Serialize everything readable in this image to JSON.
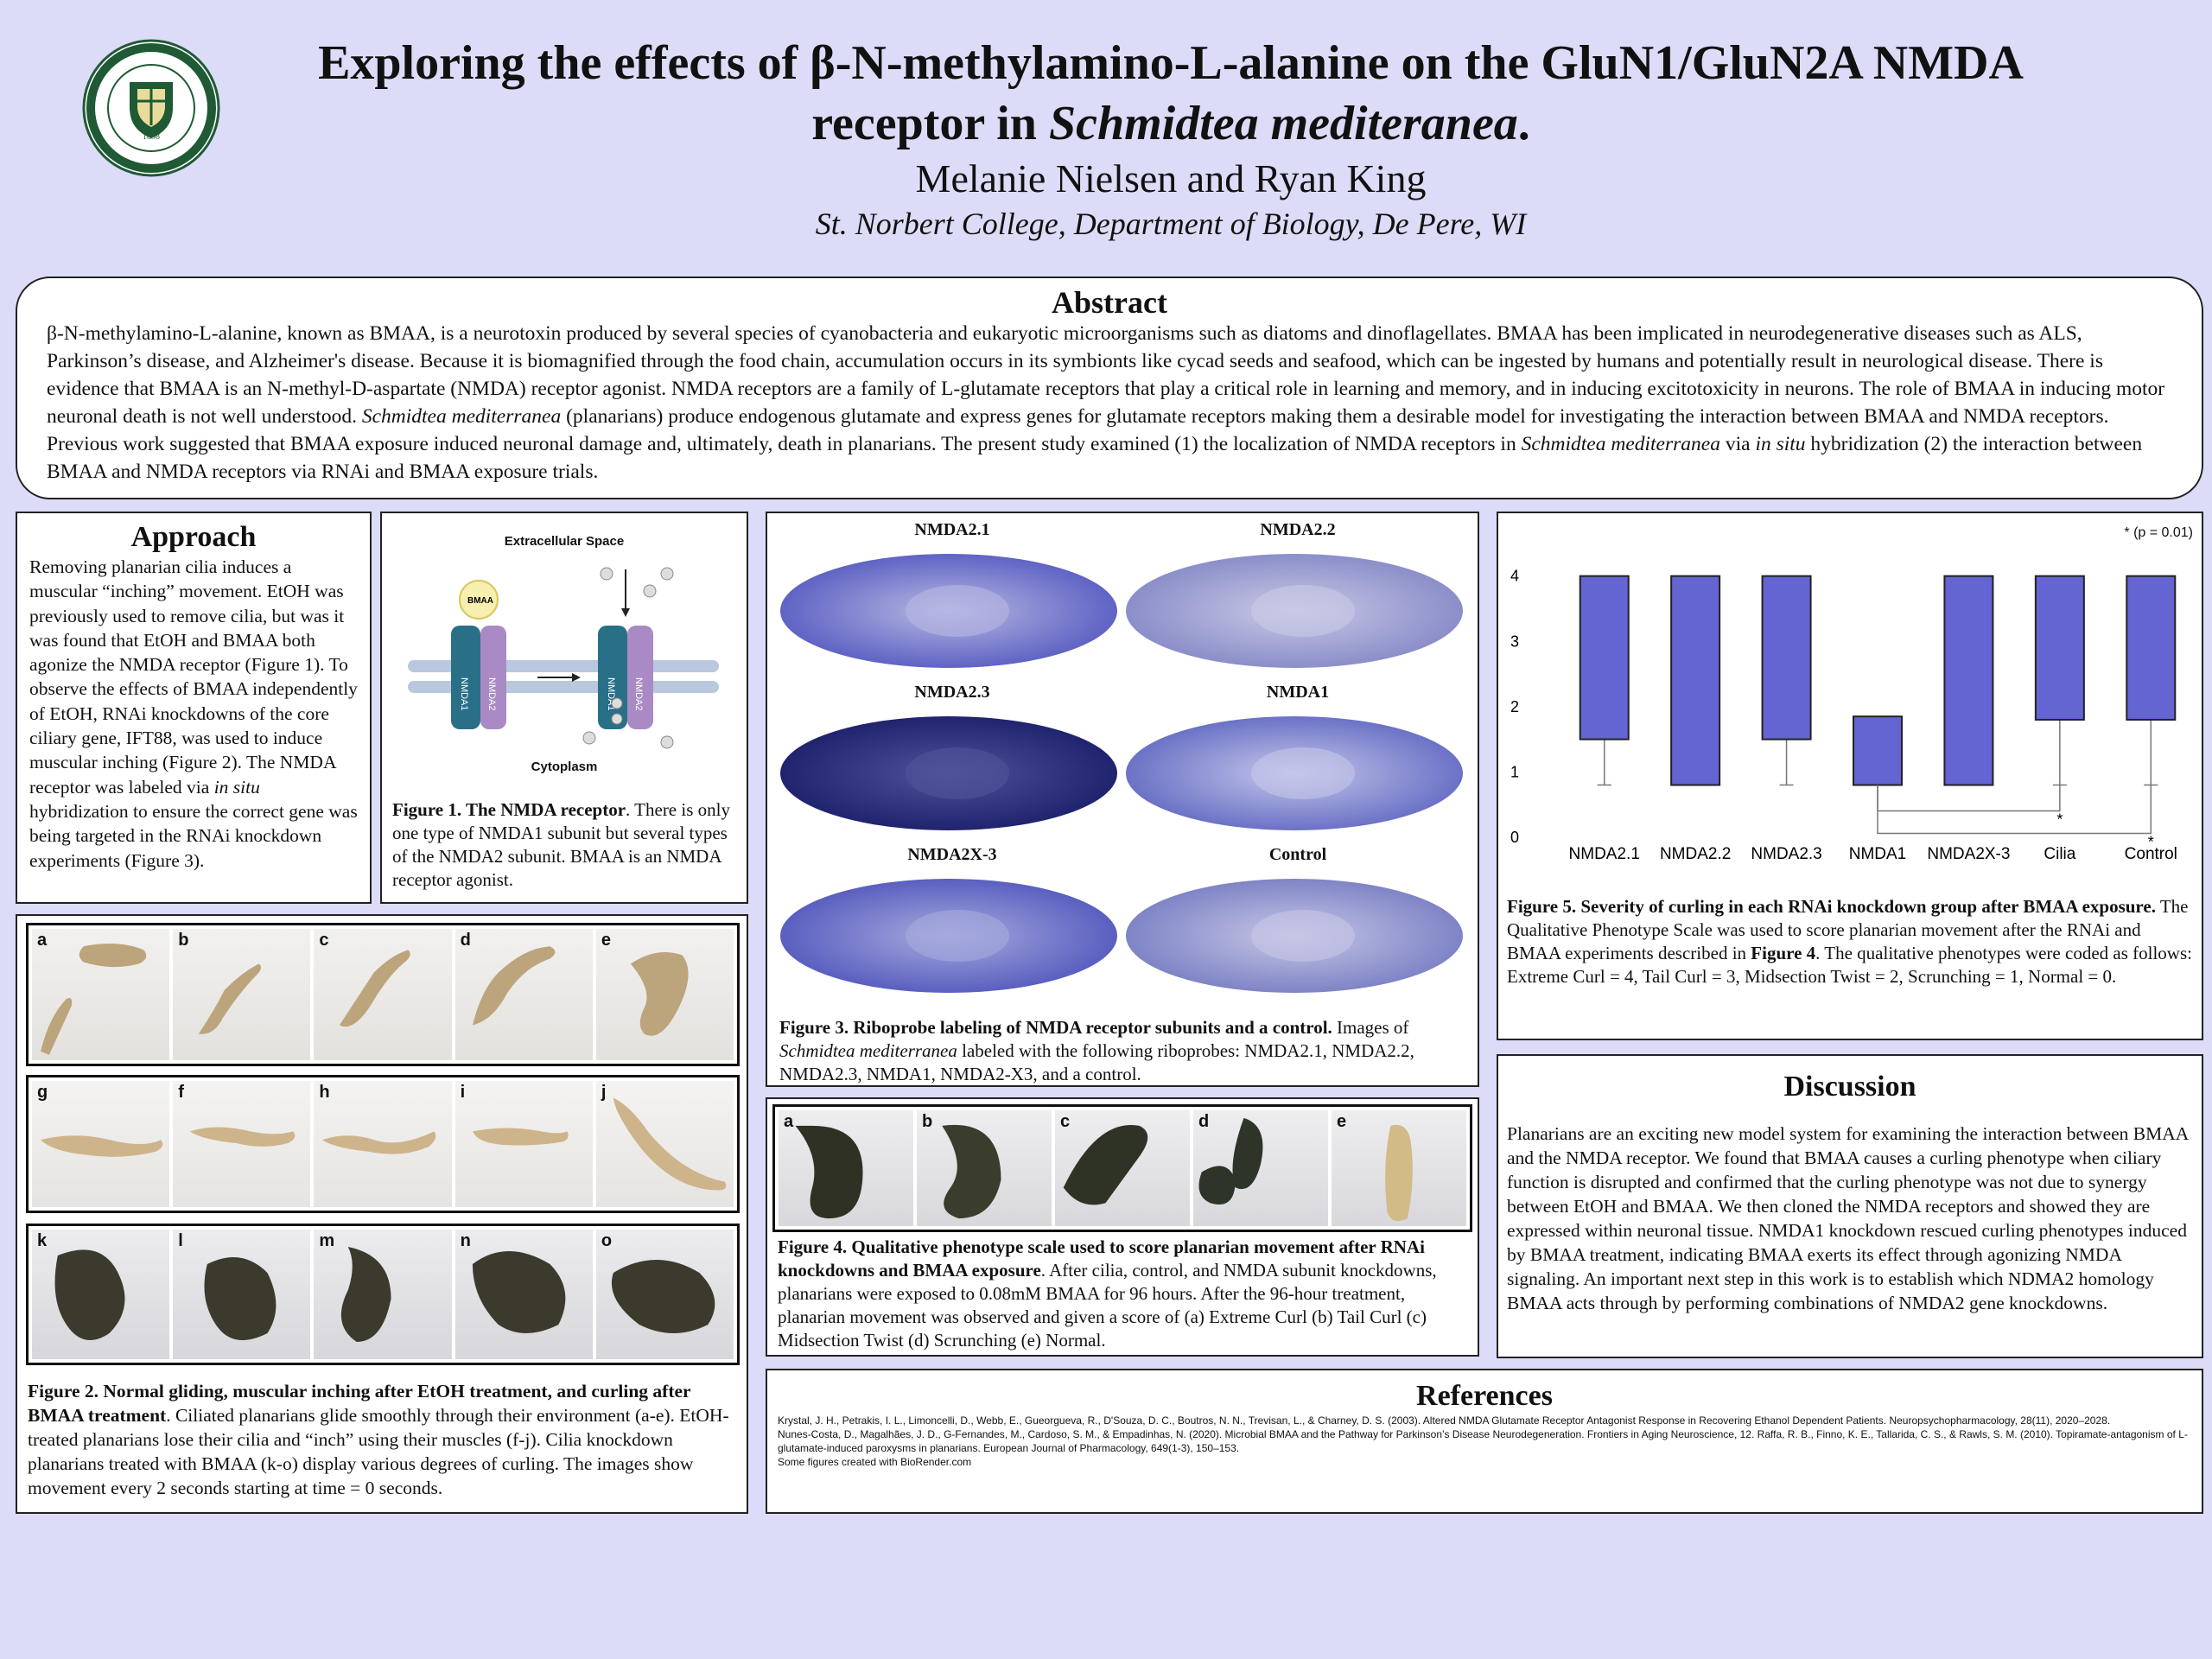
{
  "header": {
    "logo": {
      "top": "ST. NORBERT COLLEGE",
      "year": "1898",
      "motto": "Docere Verbo et Exemplo"
    },
    "title_line1": "Exploring the effects of β-N-methylamino-L-alanine on the GluN1/GluN2A NMDA",
    "title_line2_a": "receptor in ",
    "title_line2_italic": "Schmidtea mediteranea",
    "title_line2_b": ".",
    "authors": "Melanie Nielsen and Ryan King",
    "affiliation": "St. Norbert College, Department of Biology, De Pere, WI"
  },
  "abstract": {
    "heading": "Abstract",
    "text1": "β-N-methylamino-L-alanine, known as BMAA, is a neurotoxin produced by several species of cyanobacteria and eukaryotic microorganisms such as diatoms and dinoflagellates. BMAA has been implicated in neurodegenerative diseases such as ALS, Parkinson’s disease, and Alzheimer's disease. Because it is biomagnified through the food chain, accumulation occurs in its symbionts like cycad seeds and seafood, which can be ingested by humans and potentially result in neurological disease. There is evidence that BMAA is an N-methyl-D-aspartate (NMDA) receptor agonist. NMDA receptors are a family of L-glutamate receptors that play a critical role in learning and memory, and in inducing excitotoxicity in neurons. The role of BMAA in inducing motor neuronal death is not well understood. ",
    "italic1": "Schmidtea mediterranea",
    "text2": " (planarians) produce endogenous glutamate and express genes for glutamate receptors making them a desirable model for investigating the interaction between BMAA and NMDA receptors. Previous work suggested that BMAA exposure induced neuronal damage and, ultimately, death in planarians. The present study examined (1) the localization of NMDA receptors in ",
    "italic2": "Schmidtea mediterranea",
    "text3": " via ",
    "italic3": "in situ",
    "text4": " hybridization (2) the interaction between BMAA and NMDA receptors via RNAi and BMAA exposure trials."
  },
  "approach": {
    "heading": "Approach",
    "text1": "Removing planarian cilia induces a muscular “inching” movement. EtOH was previously used to remove cilia, but was it was found that EtOH and BMAA both agonize the NMDA receptor (Figure 1). To observe the effects of BMAA independently of EtOH, RNAi knockdowns of the core ciliary gene, IFT88, was used to induce muscular inching (Figure 2). The NMDA receptor was labeled via ",
    "italic": "in situ",
    "text2": " hybridization to ensure the correct gene was being targeted in the RNAi knockdown experiments (Figure 3)."
  },
  "figure1": {
    "top_label": "Extracellular Space",
    "bottom_label": "Cytoplasm",
    "bmaa_label": "BMAA",
    "nmda1": "NMDA1",
    "nmda2": "NMDA2",
    "caption_bold": "Figure 1. The NMDA receptor",
    "caption": ". There is only one type of NMDA1 subunit but several types of the NMDA2 subunit. BMAA is an NMDA receptor agonist."
  },
  "figure2": {
    "row1": [
      "a",
      "b",
      "c",
      "d",
      "e"
    ],
    "row2": [
      "g",
      "f",
      "h",
      "i",
      "j"
    ],
    "row3": [
      "k",
      "l",
      "m",
      "n",
      "o"
    ],
    "caption_bold": "Figure 2. Normal gliding, muscular inching after EtOH treatment, and curling after BMAA treatment",
    "caption": ". Ciliated planarians glide smoothly through their environment (a-e). EtOH-treated planarians lose their cilia and “inch” using their muscles (f-j). Cilia knockdown planarians treated with BMAA (k-o) display various degrees of curling. The images show movement every 2 seconds starting at time = 0 seconds."
  },
  "figure3": {
    "labels": [
      "NMDA2.1",
      "NMDA2.2",
      "NMDA2.3",
      "NMDA1",
      "NMDA2X-3",
      "Control"
    ],
    "caption_bold": "Figure 3. Riboprobe labeling of NMDA receptor subunits and a control.",
    "caption_a": " Images of ",
    "caption_italic": "Schmidtea mediterranea",
    "caption_b": " labeled with the following riboprobes: NMDA2.1, NMDA2.2, NMDA2.3, NMDA1, NMDA2-X3, and a control."
  },
  "figure4": {
    "labels": [
      "a",
      "b",
      "c",
      "d",
      "e"
    ],
    "caption_bold": "Figure 4. Qualitative phenotype scale used to score planarian movement after RNAi knockdowns and BMAA exposure",
    "caption": ". After cilia, control, and NMDA subunit knockdowns, planarians were exposed to 0.08mM BMAA for 96 hours. After the 96-hour treatment, planarian movement was observed and given a score of (a) Extreme Curl (b) Tail Curl (c) Midsection Twist (d) Scrunching (e) Normal."
  },
  "figure5": {
    "significance_note": "* (p = 0.01)",
    "star": "*",
    "caption_bold": "Figure 5. Severity of curling in each RNAi knockdown group after BMAA exposure.",
    "caption_a": " The Qualitative Phenotype Scale was used to score planarian movement after the RNAi and BMAA experiments described in ",
    "caption_fig_bold": "Figure 4",
    "caption_b": ". The qualitative phenotypes were coded as follows: Extreme Curl = 4, Tail Curl = 3, Midsection Twist = 2, Scrunching = 1, Normal = 0."
  },
  "chart_data": {
    "type": "bar",
    "categories": [
      "NMDA2.1",
      "NMDA2.2",
      "NMDA2.3",
      "NMDA1",
      "NMDA2X-3",
      "Cilia",
      "Control"
    ],
    "box_low": [
      1.5,
      0.8,
      1.5,
      0.8,
      0.8,
      1.8,
      1.8
    ],
    "box_high": [
      4,
      4,
      4,
      1.85,
      4,
      4,
      4
    ],
    "whisker_low": [
      0.8,
      0.8,
      0.8,
      0.8,
      0.8,
      0.8,
      0.8
    ],
    "yticks": [
      0,
      1,
      2,
      3,
      4
    ],
    "ylim": [
      0,
      4.3
    ],
    "color": "#6464d2",
    "significance": [
      {
        "from": "NMDA1",
        "to": "Cilia",
        "label": "*"
      },
      {
        "from": "NMDA1",
        "to": "Control",
        "label": "*"
      }
    ]
  },
  "discussion": {
    "heading": "Discussion",
    "text": "Planarians are an exciting new model system for examining the interaction between BMAA and the NMDA receptor. We found that BMAA causes a curling phenotype when ciliary function is disrupted and confirmed that the curling phenotype was not due to synergy between EtOH and BMAA. We then cloned the NMDA receptors and showed they are expressed within neuronal tissue. NMDA1 knockdown rescued curling phenotypes induced by BMAA treatment, indicating BMAA exerts its effect through agonizing NMDA signaling. An important next step in this work is to establish which NDMA2 homology BMAA acts through by performing combinations of NMDA2 gene knockdowns."
  },
  "references": {
    "heading": "References",
    "ref1": "Krystal, J. H., Petrakis, I. L., Limoncelli, D., Webb, E., Gueorgueva, R., D'Souza, D. C., Boutros, N. N., Trevisan, L., & Charney, D. S. (2003). Altered NMDA Glutamate Receptor Antagonist Response in Recovering Ethanol Dependent  Patients. Neuropsychopharmacology, 28(11), 2020–2028.",
    "ref2": "Nunes-Costa, D., Magalhães, J. D., G-Fernandes, M., Cardoso, S. M., & Empadinhas, N. (2020). Microbial BMAA and the Pathway for Parkinson’s Disease Neurodegeneration. Frontiers in Aging Neuroscience, 12. Raffa, R. B., Finno, K. E., Tallarida, C. S., & Rawls, S. M. (2010). Topiramate-antagonism of L-glutamate-induced paroxysms in planarians. European Journal of Pharmacology, 649(1-3), 150–153.",
    "ref3": "Some figures created with BioRender.com"
  }
}
